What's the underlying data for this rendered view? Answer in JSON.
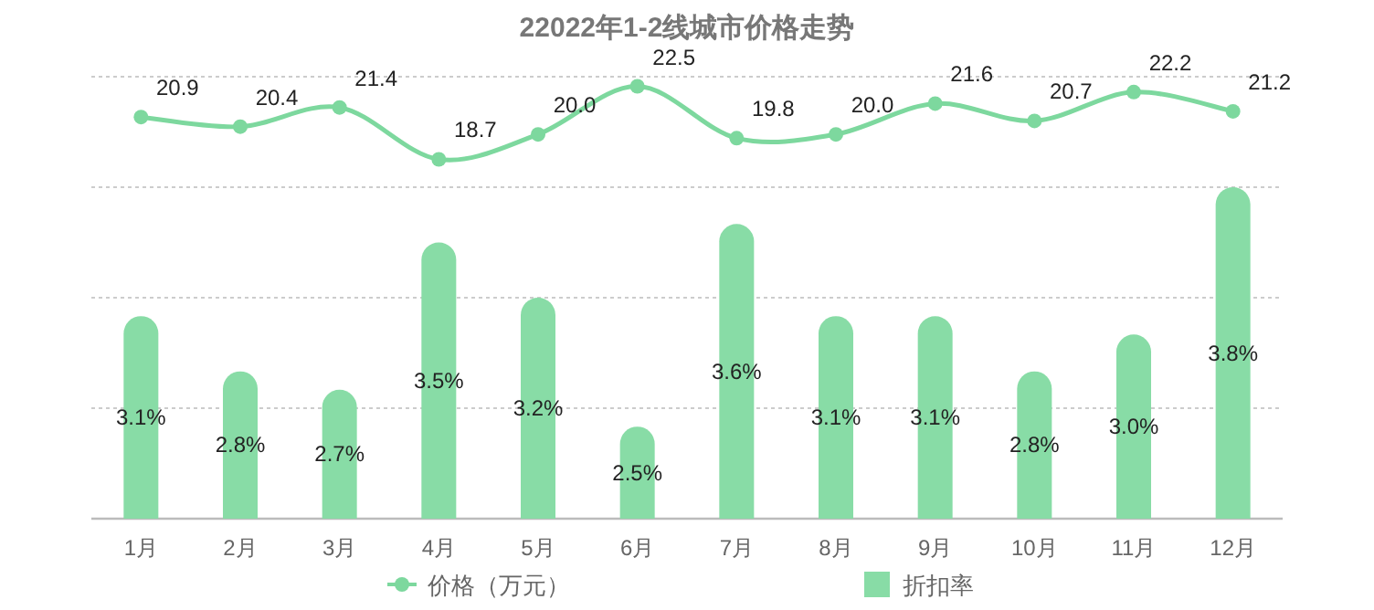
{
  "chart_data": {
    "type": "bar",
    "title": "22022年1-2线城市价格走势",
    "categories": [
      "1月",
      "2月",
      "3月",
      "4月",
      "5月",
      "6月",
      "7月",
      "8月",
      "9月",
      "10月",
      "11月",
      "12月"
    ],
    "series": [
      {
        "name": "价格（万元）",
        "type": "line",
        "axis": "y2",
        "color": "#7dd89e",
        "marker": "circle",
        "values": [
          20.9,
          20.4,
          21.4,
          18.7,
          20.0,
          22.5,
          19.8,
          20.0,
          21.6,
          20.7,
          22.2,
          21.2
        ],
        "value_labels": [
          "20.9",
          "20.4",
          "21.4",
          "18.7",
          "20.0",
          "22.5",
          "19.8",
          "20.0",
          "21.6",
          "20.7",
          "22.2",
          "21.2"
        ]
      },
      {
        "name": "折扣率",
        "color": "#88dca6",
        "values": [
          3.1,
          2.8,
          2.7,
          3.5,
          3.2,
          2.5,
          3.6,
          3.1,
          3.1,
          2.8,
          3.0,
          3.8
        ],
        "value_labels": [
          "3.1%",
          "2.8%",
          "2.7%",
          "3.5%",
          "3.2%",
          "2.5%",
          "3.6%",
          "3.1%",
          "3.1%",
          "2.8%",
          "3.0%",
          "3.8%"
        ]
      }
    ],
    "ylim": [
      2,
      4.4
    ],
    "yticks": [
      {
        "value": 2,
        "label": null
      },
      {
        "value": 2.6,
        "label": null
      },
      {
        "value": 3.2,
        "label": null
      },
      {
        "value": 3.8,
        "label": null
      },
      {
        "value": 4.4,
        "label": null
      }
    ],
    "y2lim": [
      0,
      23
    ],
    "grid": "y",
    "legend": "bottom",
    "tick_labels": "x"
  }
}
